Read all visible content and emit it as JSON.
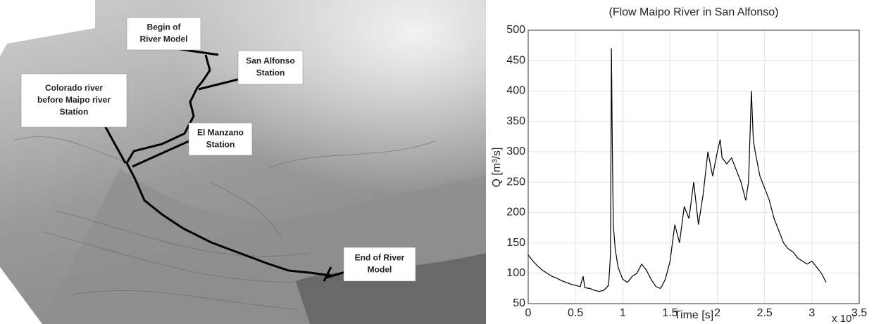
{
  "map": {
    "labels": [
      {
        "lines": [
          "Begin of",
          "River Model"
        ]
      },
      {
        "lines": [
          "San Alfonso",
          "Station"
        ]
      },
      {
        "lines": [
          "Colorado river",
          "before Maipo river",
          "Station"
        ]
      },
      {
        "lines": [
          "El Manzano",
          "Station"
        ]
      },
      {
        "lines": [
          "End of River",
          "Model"
        ]
      }
    ]
  },
  "chart_data": {
    "type": "line",
    "title": "(Flow Maipo River in San Alfonso)",
    "x_label": "Time [s]",
    "x_multiplier": "x 10⁷",
    "y_label": "Q [m³/s]",
    "x": [
      0,
      0.05,
      0.1,
      0.15,
      0.2,
      0.25,
      0.3,
      0.35,
      0.4,
      0.45,
      0.5,
      0.55,
      0.58,
      0.6,
      0.65,
      0.7,
      0.75,
      0.8,
      0.85,
      0.87,
      0.88,
      0.89,
      0.9,
      0.92,
      0.95,
      1.0,
      1.05,
      1.1,
      1.15,
      1.2,
      1.25,
      1.3,
      1.35,
      1.4,
      1.45,
      1.5,
      1.55,
      1.6,
      1.65,
      1.7,
      1.75,
      1.8,
      1.85,
      1.9,
      1.95,
      2.0,
      2.03,
      2.05,
      2.1,
      2.15,
      2.2,
      2.25,
      2.3,
      2.33,
      2.36,
      2.38,
      2.4,
      2.45,
      2.5,
      2.55,
      2.6,
      2.65,
      2.7,
      2.75,
      2.8,
      2.85,
      2.9,
      2.95,
      3.0,
      3.05,
      3.1,
      3.15
    ],
    "values": [
      130,
      120,
      112,
      105,
      100,
      95,
      92,
      88,
      85,
      82,
      80,
      78,
      95,
      76,
      75,
      72,
      70,
      72,
      80,
      130,
      470,
      300,
      180,
      140,
      110,
      90,
      85,
      95,
      100,
      115,
      105,
      90,
      78,
      75,
      90,
      120,
      180,
      150,
      210,
      190,
      250,
      180,
      230,
      300,
      260,
      300,
      320,
      290,
      280,
      290,
      270,
      250,
      220,
      250,
      400,
      320,
      300,
      260,
      240,
      220,
      190,
      170,
      150,
      140,
      135,
      125,
      120,
      115,
      120,
      110,
      100,
      85
    ],
    "color": "#000000",
    "xlim": [
      0,
      3.5
    ],
    "xticks": [
      0,
      0.5,
      1,
      1.5,
      2,
      2.5,
      3,
      3.5
    ],
    "ylim": [
      50,
      500
    ],
    "yticks": [
      50,
      100,
      150,
      200,
      250,
      300,
      350,
      400,
      450,
      500
    ],
    "grid": true
  }
}
